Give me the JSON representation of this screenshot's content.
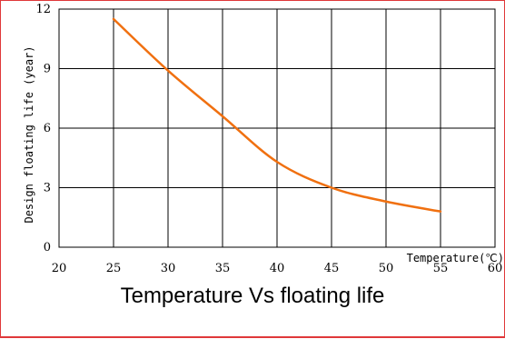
{
  "chart_data": {
    "type": "line",
    "title": "Temperature Vs floating life",
    "xlabel": "Temperature(℃)",
    "ylabel": "Design floating life (year)",
    "xlim": [
      20,
      60
    ],
    "ylim": [
      0,
      12
    ],
    "xticks": [
      20,
      25,
      30,
      35,
      40,
      45,
      50,
      55,
      60
    ],
    "yticks": [
      0,
      3,
      6,
      9,
      12
    ],
    "grid": true,
    "line_color": "#f07010",
    "series": [
      {
        "x": [
          25,
          30,
          35,
          40,
          45,
          50,
          55
        ],
        "y": [
          11.5,
          8.9,
          6.6,
          4.3,
          3.0,
          2.3,
          1.8
        ]
      }
    ]
  }
}
